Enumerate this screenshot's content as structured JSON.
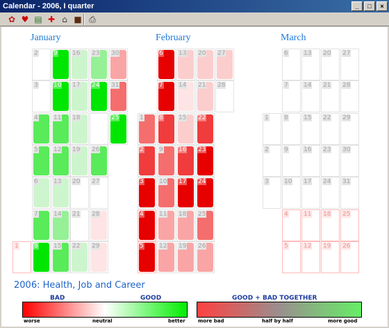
{
  "window": {
    "title": "Calendar - 2006, I quarter"
  },
  "toolbar": {
    "icons": [
      "flowers-icon",
      "heart-icon",
      "money-icon",
      "health-cross-icon",
      "home-icon",
      "briefcase-icon",
      "printer-icon"
    ]
  },
  "months": [
    {
      "name": "January"
    },
    {
      "name": "February"
    },
    {
      "name": "March"
    }
  ],
  "calendar": {
    "january": {
      "days": [
        [
          "2",
          "9",
          "16",
          "23",
          "30"
        ],
        [
          "3",
          "10",
          "17",
          "24",
          "31"
        ],
        [
          "4",
          "11",
          "18",
          "",
          "25"
        ],
        [
          "5",
          "12",
          "19",
          "26"
        ],
        [
          "6",
          "13",
          "20",
          "27"
        ],
        [
          "7",
          "14",
          "21",
          "28"
        ],
        [
          "1",
          "8",
          "15",
          "22",
          "29"
        ]
      ]
    },
    "february": {
      "days": [
        [
          "6",
          "13",
          "20",
          "27"
        ],
        [
          "7",
          "14",
          "21",
          "28"
        ],
        [
          "1",
          "8",
          "15",
          "22"
        ],
        [
          "2",
          "9",
          "16",
          "23"
        ],
        [
          "3",
          "10",
          "17",
          "24"
        ],
        [
          "4",
          "11",
          "18",
          "25"
        ],
        [
          "5",
          "12",
          "19",
          "26"
        ]
      ]
    },
    "march": {
      "days": [
        [
          "6",
          "13",
          "20",
          "27"
        ],
        [
          "7",
          "14",
          "21",
          "28"
        ],
        [
          "1",
          "8",
          "15",
          "22",
          "29"
        ],
        [
          "2",
          "9",
          "16",
          "23",
          "30"
        ],
        [
          "3",
          "10",
          "17",
          "24",
          "31"
        ],
        [
          "4",
          "11",
          "18",
          "25"
        ],
        [
          "5",
          "12",
          "19",
          "26"
        ]
      ]
    }
  },
  "heading": "2006: Health, Job and Career",
  "legend": {
    "left_title_bad": "BAD",
    "left_title_good": "GOOD",
    "right_title": "GOOD + BAD TOGETHER",
    "left_ticks": [
      "worse",
      "neutral",
      "better"
    ],
    "right_ticks": [
      "more bad",
      "half by half",
      "more good"
    ],
    "colors": {
      "bad": "#ff0000",
      "neutral": "#ffffff",
      "good": "#00ee00"
    }
  }
}
